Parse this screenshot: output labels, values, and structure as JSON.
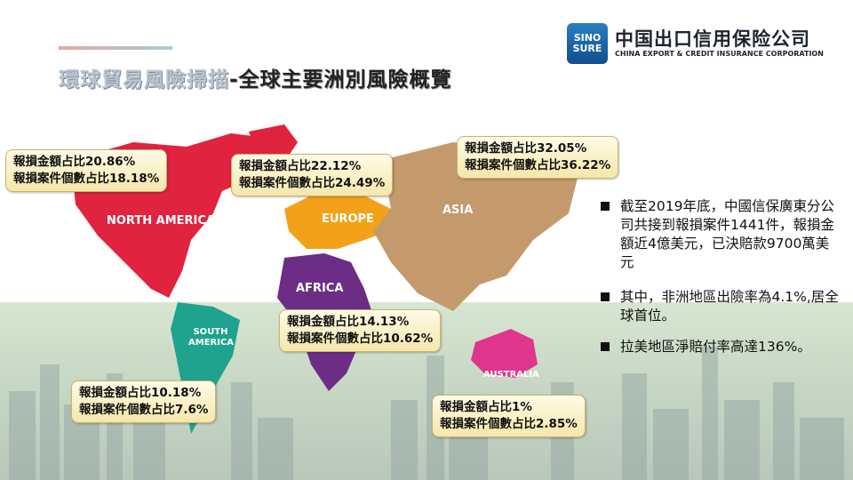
{
  "title": {
    "part1": "環球貿易風險掃描",
    "part2": "-全球主要洲別風險概覽"
  },
  "logo": {
    "badge_line1": "SINO",
    "badge_line2": "SURE",
    "cn": "中国出口信用保险公司",
    "en": "CHINA EXPORT & CREDIT INSURANCE CORPORATION"
  },
  "regions": {
    "north_america": "NORTH AMERICA",
    "europe": "EUROPE",
    "asia": "ASIA",
    "africa": "AFRICA",
    "south_america": "SOUTH AMERICA",
    "australia": "AUSTRALIA"
  },
  "callouts": {
    "north_america": {
      "amount": "報損金額占比20.86%",
      "cases": "報損案件個數占比18.18%"
    },
    "europe": {
      "amount": "報損金額占比22.12%",
      "cases": "報損案件個數占比24.49%"
    },
    "asia": {
      "amount": "報損金額占比32.05%",
      "cases": "報損案件個數占比36.22%"
    },
    "africa": {
      "amount": "報損金額占比14.13%",
      "cases": "報損案件個數占比10.62%"
    },
    "south_america": {
      "amount": "報損金額占比10.18%",
      "cases": "報損案件個數占比7.6%"
    },
    "australia": {
      "amount": "報損金額占比1%",
      "cases": "報損案件個數占比2.85%"
    }
  },
  "notes": [
    "截至2019年底，中國信保廣東分公司共接到報損案件1441件，報損金額近4億美元，已決賠款9700萬美元",
    "其中，非洲地區出險率為4.1%,居全球首位。",
    "拉美地區淨賠付率高達136%。"
  ],
  "colors": {
    "north_america": "#e0233f",
    "europe": "#f4a11a",
    "asia": "#c49a6c",
    "africa": "#6b2d86",
    "south_america": "#1fa38e",
    "australia": "#e0358c"
  }
}
